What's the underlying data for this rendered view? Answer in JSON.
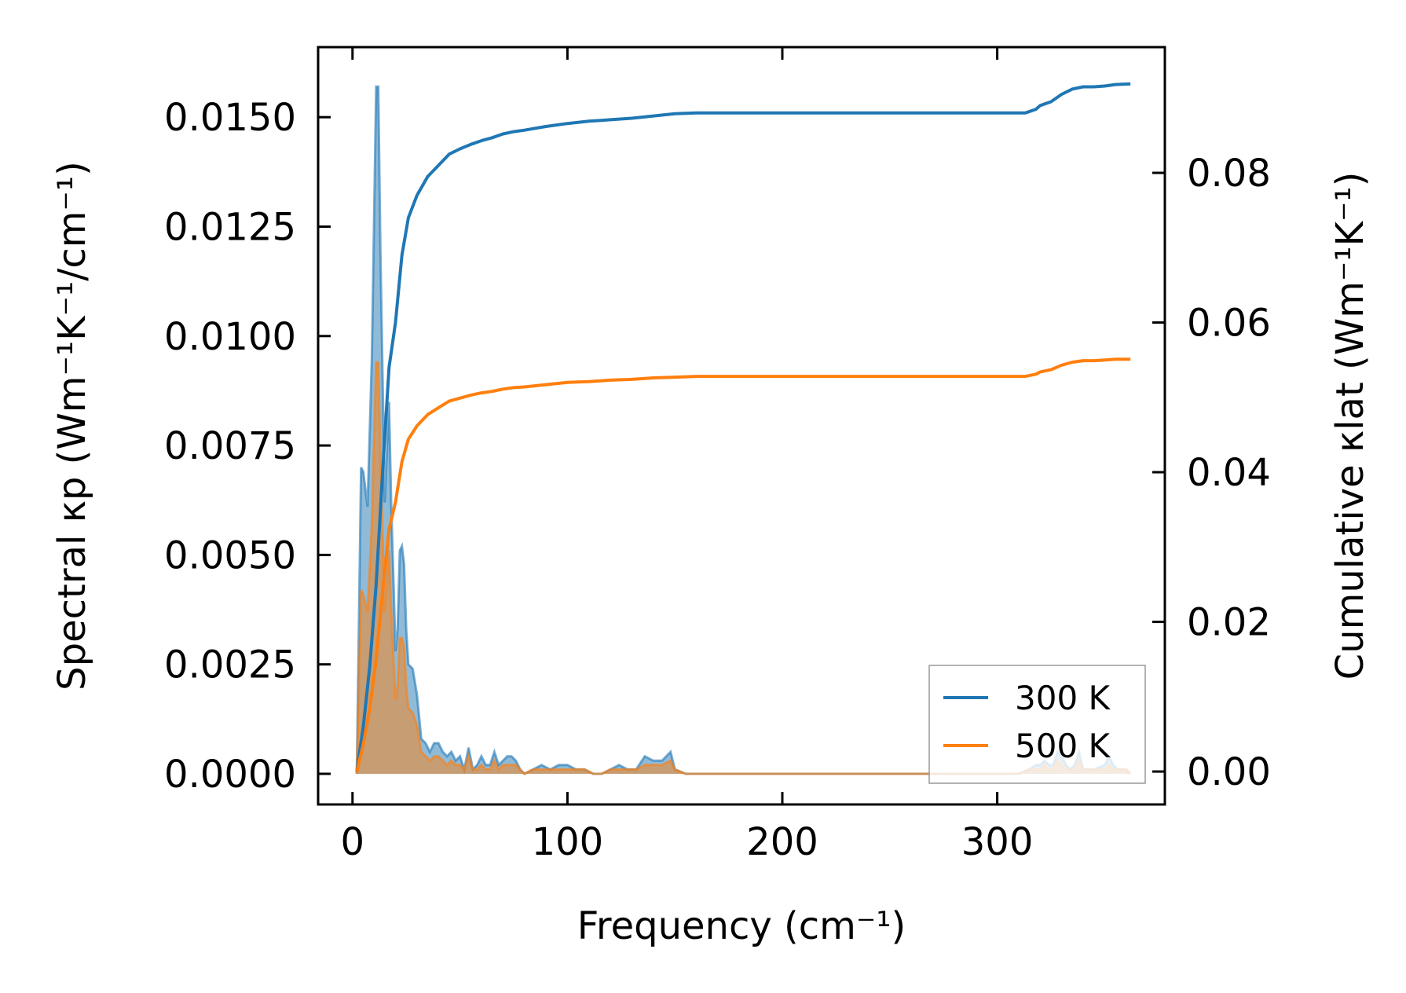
{
  "chart_data": {
    "type": "line",
    "xlabel": "Frequency (cm⁻¹)",
    "ylabel_left": "Spectral κp (Wm⁻¹K⁻¹/cm⁻¹)",
    "ylabel_right": "Cumulative κlat (Wm⁻¹K⁻¹)",
    "xlim": [
      -16,
      378
    ],
    "ylim_left": [
      -0.0007,
      0.0166
    ],
    "ylim_right": [
      -0.0044,
      0.0968
    ],
    "xticks": [
      "0",
      "100",
      "200",
      "300"
    ],
    "xtick_values": [
      0,
      100,
      200,
      300
    ],
    "yticks_left": [
      "0.0000",
      "0.0025",
      "0.0050",
      "0.0075",
      "0.0100",
      "0.0125",
      "0.0150"
    ],
    "ytick_values_left": [
      0,
      0.0025,
      0.005,
      0.0075,
      0.01,
      0.0125,
      0.015
    ],
    "yticks_right": [
      "0.00",
      "0.02",
      "0.04",
      "0.06",
      "0.08"
    ],
    "ytick_values_right": [
      0,
      0.02,
      0.04,
      0.06,
      0.08
    ],
    "legend": {
      "position": "lower-right",
      "entries": [
        "300 K",
        "500 K"
      ]
    },
    "colors": {
      "s300": "#1f77b4",
      "s500": "#ff7f0e"
    },
    "spectral": [
      {
        "name": "300 K",
        "x": [
          2,
          4,
          5,
          7,
          9,
          11,
          12,
          13,
          15,
          17,
          18,
          19,
          20,
          21,
          22,
          23,
          24,
          25,
          26,
          28,
          30,
          32,
          34,
          36,
          38,
          40,
          42,
          44,
          46,
          48,
          50,
          52,
          54,
          56,
          58,
          60,
          62,
          64,
          66,
          68,
          70,
          72,
          74,
          76,
          78,
          80,
          84,
          88,
          92,
          96,
          100,
          104,
          108,
          112,
          116,
          120,
          124,
          128,
          132,
          136,
          140,
          144,
          148,
          150,
          155,
          160,
          200,
          300,
          310,
          315,
          318,
          320,
          322,
          324,
          326,
          328,
          330,
          332,
          334,
          336,
          338,
          340,
          345,
          350,
          352,
          354,
          356,
          358,
          360,
          362
        ],
        "y": [
          0,
          0.007,
          0.0069,
          0.0061,
          0.0095,
          0.0157,
          0.0157,
          0.012,
          0.0062,
          0.0085,
          0.0062,
          0.0045,
          0.0028,
          0.0033,
          0.0051,
          0.0052,
          0.0048,
          0.0033,
          0.0025,
          0.0024,
          0.0018,
          0.0008,
          0.0007,
          0.0005,
          0.0007,
          0.0007,
          0.0005,
          0.0004,
          0.0005,
          0.0003,
          0.0004,
          0.0001,
          0.0006,
          0.0001,
          0.0002,
          0.0004,
          0.0002,
          0.0002,
          0.0005,
          0.0002,
          0.0003,
          0.0004,
          0.0004,
          0.0003,
          0.0001,
          0,
          0.0001,
          0.0002,
          0.0001,
          0.0002,
          0.0002,
          0.0001,
          0.0001,
          0,
          0,
          0.0001,
          0.0002,
          0.0001,
          0.0001,
          0.0004,
          0.0003,
          0.0003,
          0.0005,
          0.0001,
          0,
          0,
          0,
          0,
          0,
          0.0001,
          0.0002,
          0.0002,
          0.0003,
          0.0002,
          0.0002,
          0.0005,
          0.0004,
          0.0002,
          0.0001,
          0.0002,
          0.0005,
          0.0001,
          0.0001,
          0.0002,
          0.0004,
          0.0002,
          0.0001,
          0.0001,
          0.0001,
          0
        ]
      },
      {
        "name": "500 K",
        "x": [
          2,
          4,
          5,
          7,
          9,
          11,
          12,
          13,
          15,
          17,
          18,
          19,
          20,
          21,
          22,
          23,
          24,
          25,
          26,
          28,
          30,
          32,
          34,
          36,
          38,
          40,
          42,
          44,
          46,
          48,
          50,
          52,
          54,
          56,
          58,
          60,
          62,
          64,
          66,
          68,
          70,
          72,
          74,
          76,
          78,
          80,
          84,
          88,
          92,
          96,
          100,
          104,
          108,
          112,
          116,
          120,
          124,
          128,
          132,
          136,
          140,
          144,
          148,
          150,
          155,
          160,
          200,
          300,
          310,
          315,
          318,
          320,
          322,
          324,
          326,
          328,
          330,
          332,
          334,
          336,
          338,
          340,
          345,
          350,
          352,
          354,
          356,
          358,
          360,
          362
        ],
        "y": [
          0,
          0.0042,
          0.0041,
          0.0037,
          0.0057,
          0.0094,
          0.0094,
          0.0072,
          0.0037,
          0.0051,
          0.0037,
          0.0027,
          0.0017,
          0.002,
          0.0031,
          0.0031,
          0.0029,
          0.002,
          0.0015,
          0.0014,
          0.0011,
          0.0005,
          0.0004,
          0.0003,
          0.0004,
          0.0004,
          0.0003,
          0.0002,
          0.0003,
          0.0002,
          0.0002,
          0.0001,
          0.0004,
          0.0001,
          0.0001,
          0.0002,
          0.0001,
          0.0001,
          0.0003,
          0.0001,
          0.0002,
          0.0002,
          0.0002,
          0.0002,
          0.0001,
          0,
          0.0001,
          0.0001,
          0.0001,
          0.0001,
          0.0001,
          0.0001,
          0.0001,
          0,
          0,
          0.0001,
          0.0001,
          0.0001,
          0.0001,
          0.0002,
          0.0002,
          0.0002,
          0.0003,
          0.0001,
          0,
          0,
          0,
          0,
          0,
          0.0001,
          0.0001,
          0.0001,
          0.0002,
          0.0001,
          0.0001,
          0.0003,
          0.0002,
          0.0001,
          0.0001,
          0.0001,
          0.0003,
          0.0001,
          0.0001,
          0.0001,
          0.0002,
          0.0001,
          0.0001,
          0.0001,
          0.0001,
          0
        ]
      }
    ],
    "cumulative": [
      {
        "name": "300 K",
        "x": [
          2,
          5,
          8,
          11,
          14,
          17,
          20,
          23,
          26,
          30,
          35,
          40,
          45,
          50,
          55,
          60,
          65,
          70,
          75,
          80,
          90,
          100,
          110,
          120,
          130,
          140,
          150,
          160,
          200,
          250,
          300,
          313,
          318,
          320,
          325,
          330,
          335,
          340,
          345,
          350,
          355,
          362
        ],
        "y": [
          0,
          0.006,
          0.014,
          0.025,
          0.04,
          0.054,
          0.06,
          0.069,
          0.074,
          0.077,
          0.0795,
          0.081,
          0.0825,
          0.0832,
          0.0838,
          0.0843,
          0.0847,
          0.0852,
          0.0855,
          0.0857,
          0.0862,
          0.0866,
          0.0869,
          0.0871,
          0.0873,
          0.0876,
          0.0879,
          0.088,
          0.088,
          0.088,
          0.088,
          0.088,
          0.0885,
          0.089,
          0.0895,
          0.0905,
          0.0912,
          0.0915,
          0.0915,
          0.0916,
          0.0918,
          0.0919
        ]
      },
      {
        "name": "500 K",
        "x": [
          2,
          5,
          8,
          11,
          14,
          17,
          20,
          23,
          26,
          30,
          35,
          40,
          45,
          50,
          55,
          60,
          65,
          70,
          75,
          80,
          90,
          100,
          110,
          120,
          130,
          140,
          150,
          160,
          200,
          250,
          300,
          313,
          318,
          320,
          325,
          330,
          335,
          340,
          345,
          350,
          355,
          362
        ],
        "y": [
          0,
          0.0036,
          0.0084,
          0.015,
          0.024,
          0.0324,
          0.036,
          0.0414,
          0.0444,
          0.0462,
          0.0477,
          0.0486,
          0.0495,
          0.0499,
          0.0503,
          0.0506,
          0.0508,
          0.0511,
          0.0513,
          0.0514,
          0.0517,
          0.052,
          0.0521,
          0.0523,
          0.0524,
          0.0526,
          0.0527,
          0.0528,
          0.0528,
          0.0528,
          0.0528,
          0.0528,
          0.0531,
          0.0534,
          0.0537,
          0.0543,
          0.0547,
          0.0549,
          0.0549,
          0.055,
          0.0551,
          0.0551
        ]
      }
    ]
  }
}
